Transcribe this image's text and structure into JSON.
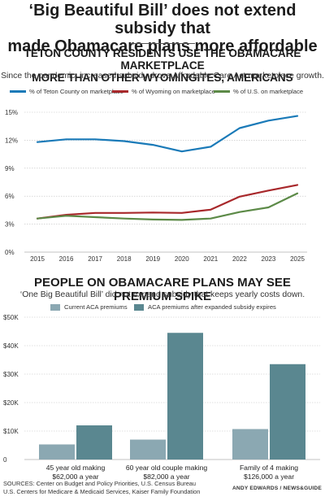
{
  "headline": {
    "line1": "‘Big Beautiful Bill’ does not extend subsidy that",
    "line2": "made Obamacare plans more affordable"
  },
  "colors": {
    "teton": "#1a7ab8",
    "wyoming": "#a8282b",
    "us": "#5c8a47",
    "current": "#8ba8b2",
    "expired": "#5a8790",
    "grid": "#bfbfbf"
  },
  "chart_data": [
    {
      "type": "line",
      "title": [
        "TETON COUNTY RESIDENTS USE THE OBAMACARE MARKETPLACE",
        "MORE THAN OTHER WYOMINGITES, AMERICANS"
      ],
      "subtitle": "Since the pandemic, increased subsidy drove Affordable Care Act marketplace growth.",
      "x": [
        "2015",
        "2016",
        "2017",
        "2018",
        "2019",
        "2020",
        "2021",
        "2022",
        "2023",
        "2025"
      ],
      "y_ticks": [
        "0%",
        "3%",
        "6%",
        "9%",
        "12%",
        "15%"
      ],
      "ylim": [
        0,
        15
      ],
      "grid": true,
      "legend_position": "top",
      "series": [
        {
          "name": "% of Teton County on marketplace",
          "color_key": "teton",
          "values": [
            11.8,
            12.1,
            12.1,
            11.9,
            11.5,
            10.8,
            11.3,
            13.3,
            14.1,
            14.6
          ]
        },
        {
          "name": "% of Wyoming on marketplace",
          "color_key": "wyoming",
          "values": [
            3.6,
            4.0,
            4.2,
            4.2,
            4.25,
            4.2,
            4.55,
            5.95,
            6.6,
            7.2
          ]
        },
        {
          "name": "% of U.S. on marketplace",
          "color_key": "us",
          "values": [
            3.6,
            3.9,
            3.75,
            3.6,
            3.5,
            3.45,
            3.6,
            4.3,
            4.8,
            6.3
          ]
        }
      ]
    },
    {
      "type": "bar",
      "title": "PEOPLE ON OBAMACARE PLANS MAY SEE PREMIUM SPIKE",
      "subtitle": "‘One Big Beautiful Bill’ did not expand subsidy that keeps yearly costs down.",
      "categories": [
        [
          "45 year old making",
          "$62,000 a year"
        ],
        [
          "60 year old couple making",
          "$82,000 a year"
        ],
        [
          "Family of 4 making",
          "$126,000 a year"
        ]
      ],
      "y_ticks": [
        "0",
        "$10K",
        "$20K",
        "$30K",
        "$40K",
        "$50K"
      ],
      "ylim": [
        0,
        50000
      ],
      "grid": true,
      "legend_position": "top-left",
      "series": [
        {
          "name": "Current ACA premiums",
          "color_key": "current",
          "values": [
            5300,
            7000,
            10700
          ]
        },
        {
          "name": "ACA premiums after expanded subsidy expires",
          "color_key": "expired",
          "values": [
            12000,
            44500,
            33500
          ]
        }
      ]
    }
  ],
  "footer": {
    "sources_line1": "SOURCES: Center on Budget and Policy Priorities, U.S. Census Bureau",
    "sources_line2": "U.S. Centers for Medicare & Medicaid Services, Kaiser Family Foundation",
    "credit": "ANDY EDWARDS / NEWS&GUIDE"
  }
}
